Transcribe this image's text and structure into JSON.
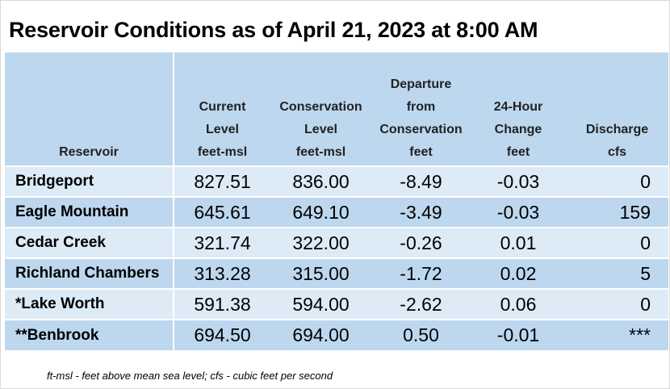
{
  "title": "Reservoir Conditions as of April 21, 2023 at 8:00 AM",
  "headers": {
    "reservoir": "Reservoir",
    "current": [
      "Current",
      "Level",
      "feet-msl"
    ],
    "conservation": [
      "Conservation",
      "Level",
      "feet-msl"
    ],
    "departure": [
      "Departure",
      "from",
      "Conservation",
      "feet"
    ],
    "change": [
      "24-Hour",
      "Change",
      "feet"
    ],
    "discharge": [
      "Discharge",
      "cfs"
    ]
  },
  "rows": [
    {
      "name": "Bridgeport",
      "current": "827.51",
      "conservation": "836.00",
      "departure": "-8.49",
      "change": "-0.03",
      "discharge": "0"
    },
    {
      "name": "Eagle Mountain",
      "current": "645.61",
      "conservation": "649.10",
      "departure": "-3.49",
      "change": "-0.03",
      "discharge": "159"
    },
    {
      "name": "Cedar Creek",
      "current": "321.74",
      "conservation": "322.00",
      "departure": "-0.26",
      "change": "0.01",
      "discharge": "0"
    },
    {
      "name": "Richland Chambers",
      "current": "313.28",
      "conservation": "315.00",
      "departure": "-1.72",
      "change": "0.02",
      "discharge": "5"
    },
    {
      "name": "*Lake Worth",
      "current": "591.38",
      "conservation": "594.00",
      "departure": "-2.62",
      "change": "0.06",
      "discharge": "0"
    },
    {
      "name": "**Benbrook",
      "current": "694.50",
      "conservation": "694.00",
      "departure": "0.50",
      "change": "-0.01",
      "discharge": "***"
    }
  ],
  "footnote": "ft-msl - feet above mean sea level; cfs - cubic feet per second"
}
